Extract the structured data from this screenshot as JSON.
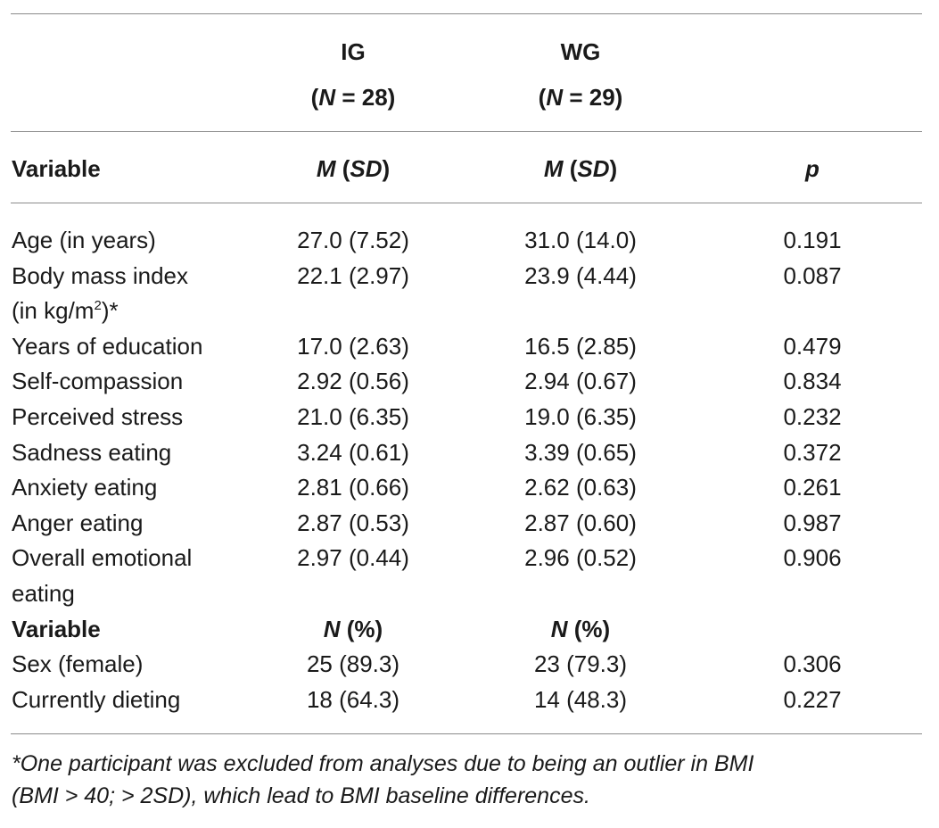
{
  "groups": {
    "ig": {
      "name": "IG",
      "n_prefix": "(",
      "n_symbol": "N",
      "n_value": " = 28)"
    },
    "wg": {
      "name": "WG",
      "n_prefix": "(",
      "n_symbol": "N",
      "n_value": " = 29)"
    }
  },
  "header": {
    "variable": "Variable",
    "m_symbol": "M",
    "sd_open": " (",
    "sd_symbol": "SD",
    "sd_close": ")",
    "p": "p"
  },
  "rows": [
    {
      "label": "Age (in years)",
      "ig": "27.0 (7.52)",
      "wg": "31.0 (14.0)",
      "p": "0.191"
    },
    {
      "label": "Body mass index",
      "label_line2_a": "(in kg/m",
      "label_line2_sup": "2",
      "label_line2_b": ")*",
      "ig": "22.1 (2.97)",
      "wg": "23.9 (4.44)",
      "p": "0.087"
    },
    {
      "label": "Years of education",
      "ig": "17.0 (2.63)",
      "wg": "16.5 (2.85)",
      "p": "0.479"
    },
    {
      "label": "Self-compassion",
      "ig": "2.92 (0.56)",
      "wg": "2.94 (0.67)",
      "p": "0.834"
    },
    {
      "label": "Perceived stress",
      "ig": "21.0 (6.35)",
      "wg": "19.0 (6.35)",
      "p": "0.232"
    },
    {
      "label": "Sadness eating",
      "ig": "3.24 (0.61)",
      "wg": "3.39 (0.65)",
      "p": "0.372"
    },
    {
      "label": "Anxiety eating",
      "ig": "2.81 (0.66)",
      "wg": "2.62 (0.63)",
      "p": "0.261"
    },
    {
      "label": "Anger eating",
      "ig": "2.87 (0.53)",
      "wg": "2.87 (0.60)",
      "p": "0.987"
    },
    {
      "label": "Overall emotional",
      "label_line2": "eating",
      "ig": "2.97 (0.44)",
      "wg": "2.96 (0.52)",
      "p": "0.906"
    }
  ],
  "subheader": {
    "variable": "Variable",
    "n_symbol": "N",
    "pct": " (%)"
  },
  "rows2": [
    {
      "label": "Sex (female)",
      "ig": "25 (89.3)",
      "wg": "23 (79.3)",
      "p": "0.306"
    },
    {
      "label": "Currently dieting",
      "ig": "18 (64.3)",
      "wg": "14 (48.3)",
      "p": "0.227"
    }
  ],
  "footnote": {
    "line1": "*One participant was excluded from analyses due to being an outlier in BMI",
    "line2": "(BMI > 40; > 2SD), which lead to BMI baseline differences."
  }
}
